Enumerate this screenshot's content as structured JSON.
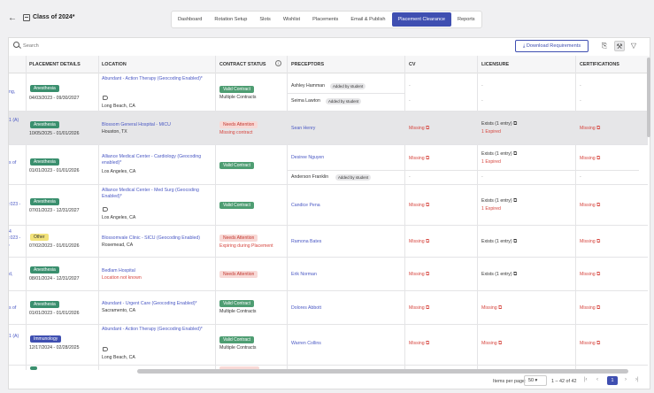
{
  "header": {
    "class_title": "Class of 2024*",
    "tabs": [
      "Dashboard",
      "Rotation Setup",
      "Slots",
      "Wishlist",
      "Placements",
      "Email & Publish",
      "Placement Clearance",
      "Reports"
    ],
    "active_tab": "Placement Clearance"
  },
  "toolbar": {
    "search_placeholder": "Search",
    "download_label": "Download Requirements"
  },
  "columns": [
    "PLACEMENT DETAILS",
    "LOCATION",
    "CONTRACT STATUS",
    "PRECEPTORS",
    "CV",
    "LICENSURE",
    "CERTIFICATIONS"
  ],
  "left_stubs": [
    "ng,",
    "1 (A)",
    "s of",
    ":023 -",
    "4\n:023 -\n,",
    "d,",
    "s of",
    "1 (A)"
  ],
  "rows": [
    {
      "specialty": "Anesthesia",
      "dates": "04/03/2023 - 09/30/2027",
      "location": "Abundant - Action Therapy (Geocoding Enabled)*",
      "city": "Long Beach, CA",
      "contract": "Valid Contract",
      "contract_sub": "Multiple Contracts",
      "preceptors": [
        {
          "name": "Ashley Hamman",
          "tag": "Added by student"
        },
        {
          "name": "Seima Lawton",
          "tag": "Added by student"
        }
      ],
      "cv": "-",
      "licensure": "-",
      "cert": "-"
    },
    {
      "specialty": "Anesthesia",
      "dates": "10/05/2025 - 01/01/2026",
      "location": "Blossom General Hospital - MICU",
      "city": "Houston, TX",
      "contract": "Needs Attention",
      "contract_sub": "Missing contract",
      "preceptors": [
        {
          "name": "Sean Henry",
          "tag": ""
        }
      ],
      "cv": "Missing",
      "licensure": "Exists (1 entry)",
      "licensure_sub": "1 Expired",
      "cert": "Missing"
    },
    {
      "specialty": "Anesthesia",
      "dates": "01/01/2023 - 01/01/2026",
      "location": "Alliance Medical Center - Cardiology (Geocoding enabled)*",
      "city": "Los Angeles, CA",
      "contract": "Valid Contract",
      "contract_sub": "",
      "preceptors": [
        {
          "name": "Desiree Nguyen",
          "tag": ""
        },
        {
          "name": "Anderson Franklin",
          "tag": "Added by student"
        }
      ],
      "cv": "Missing",
      "licensure": "Exists (1 entry)",
      "licensure_sub": "1 Expired",
      "cert": "Missing"
    },
    {
      "specialty": "Anesthesia",
      "dates": "07/01/2023 - 12/31/2027",
      "location": "Alliance Medical Center - Med Surg (Geocoding Enabled)*",
      "city": "Los Angeles, CA",
      "contract": "Valid Contract",
      "contract_sub": "",
      "preceptors": [
        {
          "name": "Candice Pena",
          "tag": ""
        }
      ],
      "cv": "Missing",
      "licensure": "Exists (1 entry)",
      "licensure_sub": "1 Expired",
      "cert": "Missing"
    },
    {
      "specialty": "Other",
      "dates": "07/02/2023 - 01/01/2026",
      "location": "Blossomvale Clinic - SICU (Geocoding Enabled)",
      "city": "Rosemead, CA",
      "contract": "Needs Attention",
      "contract_sub": "Expiring during Placement",
      "preceptors": [
        {
          "name": "Ramona Bates",
          "tag": ""
        }
      ],
      "cv": "Missing",
      "licensure": "Exists (1 entry)",
      "licensure_sub": "",
      "cert": "Missing"
    },
    {
      "specialty": "Anesthesia",
      "dates": "08/01/2024 - 12/31/2027",
      "location": "Bedlam Hospital",
      "city": "Location not known",
      "contract": "Needs Attention",
      "contract_sub": "",
      "preceptors": [
        {
          "name": "Erik Norman",
          "tag": ""
        }
      ],
      "cv": "Missing",
      "licensure": "Exists (1 entry)",
      "licensure_sub": "",
      "cert": "Missing"
    },
    {
      "specialty": "Anesthesia",
      "dates": "01/01/2023 - 01/01/2026",
      "location": "Abundant - Urgent Care (Geocoding Enabled)*",
      "city": "Sacramento, CA",
      "contract": "Valid Contract",
      "contract_sub": "Multiple Contracts",
      "preceptors": [
        {
          "name": "Dolores Abbott",
          "tag": ""
        }
      ],
      "cv": "Missing",
      "licensure": "Missing",
      "licensure_sub": "",
      "cert": "Missing"
    },
    {
      "specialty": "Immunology",
      "dates": "12/17/2024 - 02/28/2025",
      "location": "Abundant - Action Therapy (Geocoding Enabled)*",
      "city": "Long Beach, CA",
      "contract": "Valid Contract",
      "contract_sub": "Multiple Contracts",
      "preceptors": [
        {
          "name": "Warren Collins",
          "tag": ""
        }
      ],
      "cv": "Missing",
      "licensure": "Missing",
      "licensure_sub": "",
      "cert": "Missing"
    }
  ],
  "pagination": {
    "items_per_page_label": "Items per page:",
    "items_per_page": "50",
    "range": "1 – 42 of 42",
    "current_page": "1"
  },
  "icons": [
    "back-arrow-icon",
    "calendar-icon",
    "search-icon",
    "download-icon",
    "export-icon",
    "wrench-icon",
    "filter-icon",
    "info-icon",
    "tag-icon",
    "external-link-icon"
  ]
}
